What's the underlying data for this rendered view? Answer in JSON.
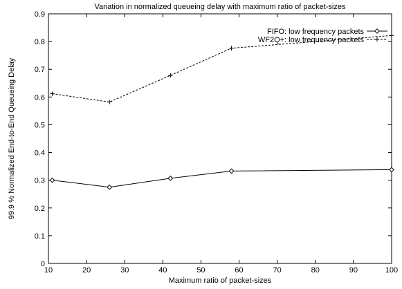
{
  "chart_data": {
    "type": "line",
    "title": "Variation in normalized queueing delay with maximum ratio of packet-sizes",
    "xlabel": "Maximum ratio of packet-sizes",
    "ylabel": "99.9 % Normalized End-to-End Queueing Delay",
    "xlim": [
      10,
      100
    ],
    "ylim": [
      0,
      0.9
    ],
    "xticks": [
      10,
      20,
      30,
      40,
      50,
      60,
      70,
      80,
      90,
      100
    ],
    "yticks": [
      0,
      0.1,
      0.2,
      0.3,
      0.4,
      0.5,
      0.6,
      0.7,
      0.8,
      0.9
    ],
    "grid": false,
    "legend_position": "top-right",
    "series": [
      {
        "name": "FIFO: low frequency packets",
        "marker": "diamond",
        "line_style": "solid",
        "color": "#000000",
        "x": [
          11,
          26,
          42,
          58,
          100
        ],
        "y": [
          0.3,
          0.275,
          0.307,
          0.333,
          0.338
        ]
      },
      {
        "name": "WF2Q+: low frequency packets",
        "marker": "plus",
        "line_style": "dashed",
        "color": "#000000",
        "x": [
          11,
          26,
          42,
          58,
          100
        ],
        "y": [
          0.612,
          0.582,
          0.678,
          0.776,
          0.822
        ]
      }
    ]
  }
}
